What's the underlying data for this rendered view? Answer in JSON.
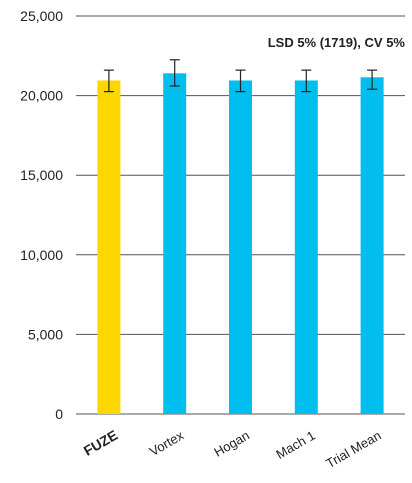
{
  "chart_data": {
    "type": "bar",
    "categories": [
      "FUZE",
      "Vortex",
      "Hogan",
      "Mach 1",
      "Trial Mean"
    ],
    "values": [
      20950,
      21400,
      20950,
      20950,
      21150
    ],
    "error_bars": [
      {
        "low": 20250,
        "high": 21600
      },
      {
        "low": 20600,
        "high": 22250
      },
      {
        "low": 20250,
        "high": 21600
      },
      {
        "low": 20250,
        "high": 21600
      },
      {
        "low": 20400,
        "high": 21600
      }
    ],
    "bar_colors": [
      "#FFD700",
      "#00BFEF",
      "#00BFEF",
      "#00BFEF",
      "#00BFEF"
    ],
    "highlight_category": "FUZE",
    "y_ticks": [
      0,
      5000,
      10000,
      15000,
      20000,
      25000
    ],
    "y_tick_labels": [
      "0",
      "5,000",
      "10,000",
      "15,000",
      "20,000",
      "25,000"
    ],
    "ylim": [
      0,
      25000
    ],
    "grid": true,
    "annotation": "LSD 5% (1719), CV 5%",
    "title": "",
    "xlabel": "",
    "ylabel": ""
  }
}
